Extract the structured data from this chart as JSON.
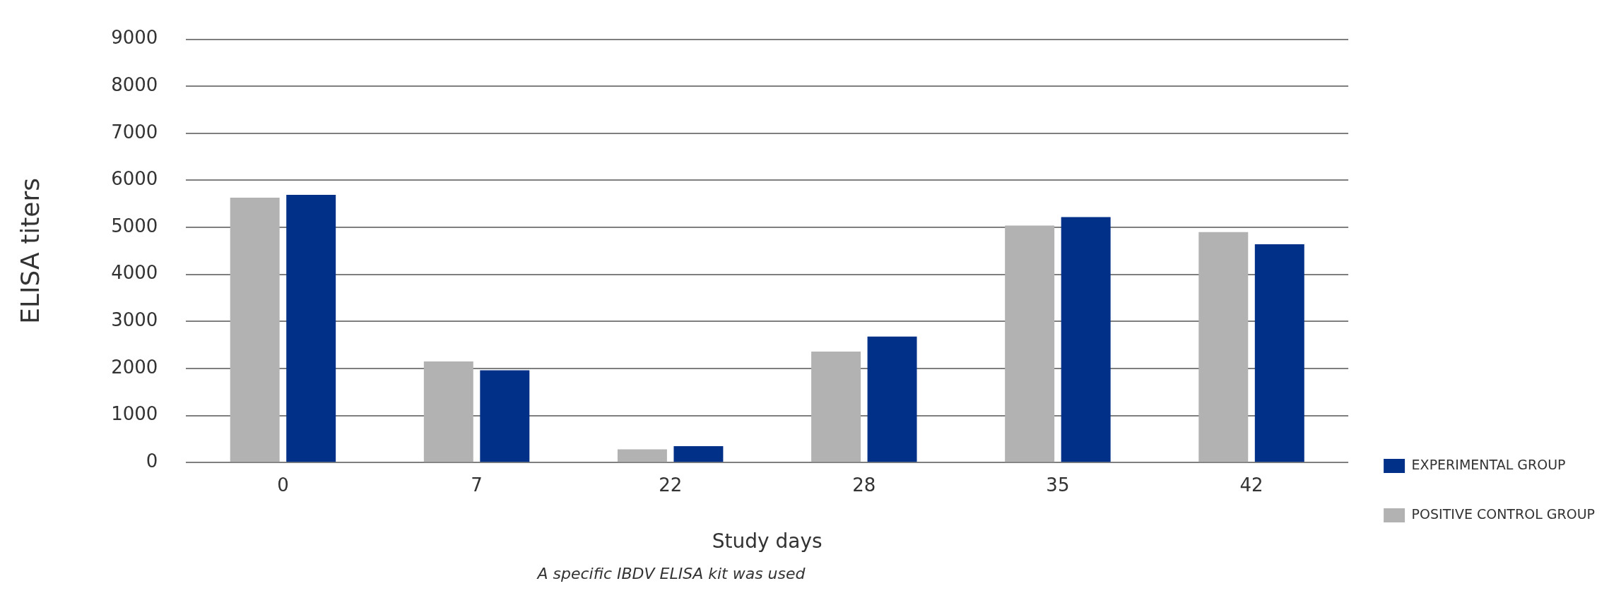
{
  "chart_data": {
    "type": "bar",
    "xlabel": "Study days",
    "ylabel": "ELISA titers",
    "categories": [
      "0",
      "7",
      "22",
      "28",
      "35",
      "42"
    ],
    "series": [
      {
        "name": "POSITIVE CONTROL GROUP",
        "color": "#b2b2b2",
        "values": [
          5630,
          2150,
          280,
          2360,
          5040,
          4900
        ]
      },
      {
        "name": "EXPERIMENTAL GROUP",
        "color": "#003087",
        "values": [
          5690,
          1960,
          350,
          2680,
          5220,
          4640
        ]
      }
    ],
    "ylim": [
      0,
      9000
    ],
    "yticks": [
      0,
      1000,
      2000,
      3000,
      4000,
      5000,
      6000,
      7000,
      8000,
      9000
    ],
    "grid": "y",
    "legend": "right",
    "annotations": [
      "A specific IBDV ELISA kit was used"
    ]
  }
}
